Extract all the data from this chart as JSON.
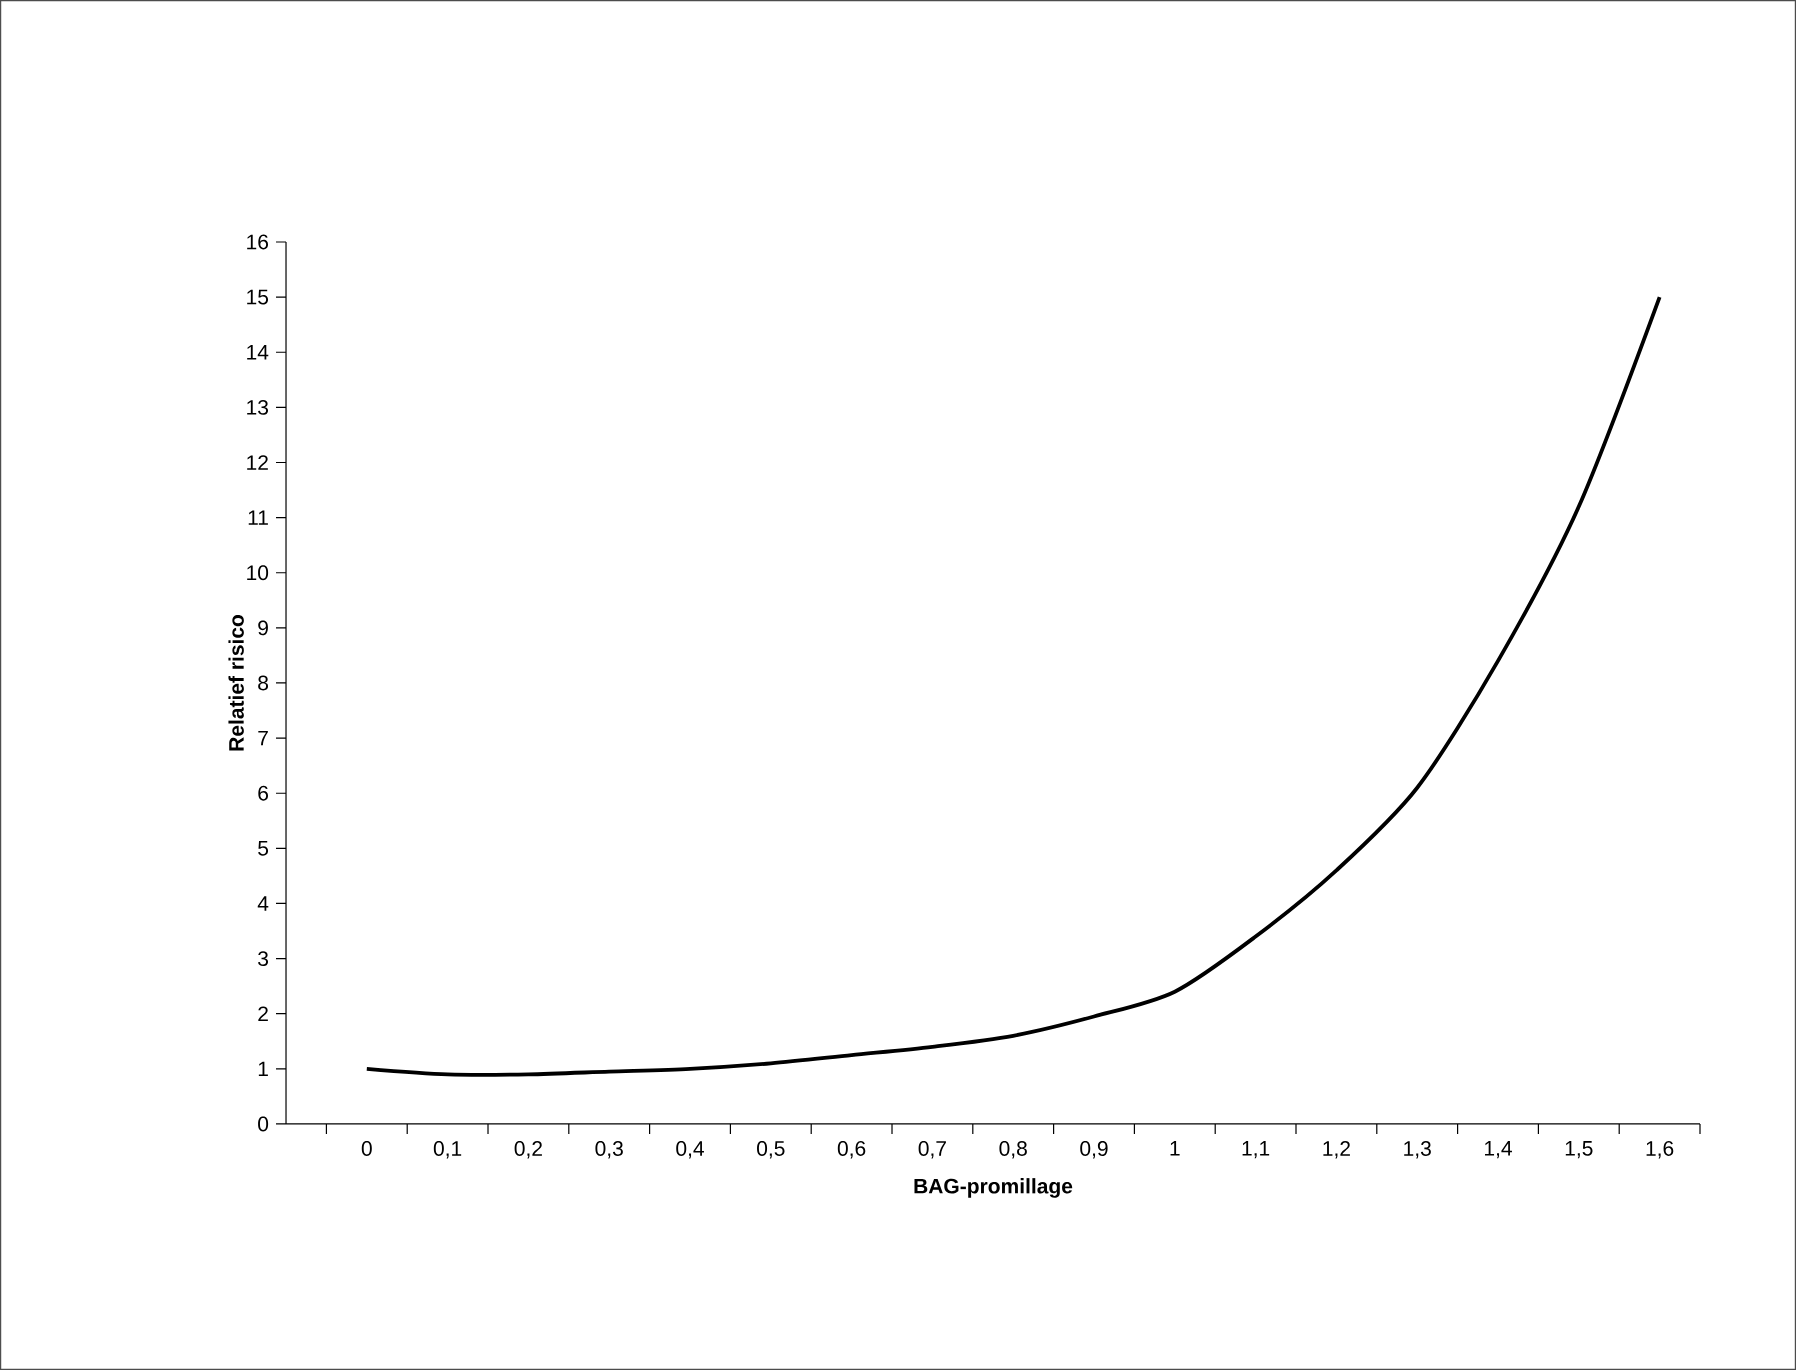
{
  "chart_data": {
    "type": "line",
    "xlabel": "BAG-promillage",
    "ylabel": "Relatief risico",
    "categories": [
      "0",
      "0,1",
      "0,2",
      "0,3",
      "0,4",
      "0,5",
      "0,6",
      "0,7",
      "0,8",
      "0,9",
      "1",
      "1,1",
      "1,2",
      "1,3",
      "1,4",
      "1,5",
      "1,6"
    ],
    "series": [
      {
        "color": "#000000",
        "values": [
          1.0,
          0.9,
          0.9,
          0.95,
          1.0,
          1.1,
          1.25,
          1.4,
          1.6,
          1.95,
          2.4,
          3.4,
          4.6,
          6.1,
          8.4,
          11.2,
          15.0
        ]
      }
    ],
    "ylim": [
      0,
      16
    ],
    "yticks": [
      0,
      1,
      2,
      3,
      4,
      5,
      6,
      7,
      8,
      9,
      10,
      11,
      12,
      13,
      14,
      15,
      16
    ],
    "grid": false,
    "legend": false,
    "marker": "none",
    "line_style": "solid"
  }
}
